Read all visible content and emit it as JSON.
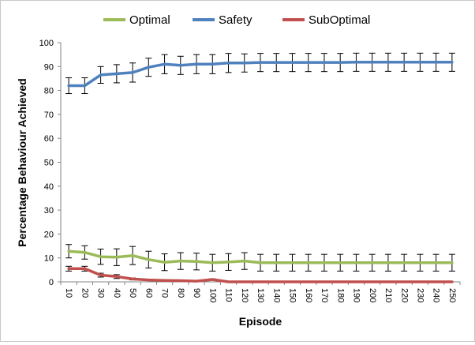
{
  "chart_data": {
    "type": "line",
    "xlabel": "Episode",
    "ylabel": "Percentage Behaviour  Achieved",
    "ylim": [
      0,
      100
    ],
    "yticks": [
      0,
      10,
      20,
      30,
      40,
      50,
      60,
      70,
      80,
      90,
      100
    ],
    "grid": false,
    "legend_position": "top",
    "categories": [
      "10",
      "20",
      "30",
      "40",
      "50",
      "60",
      "70",
      "80",
      "90",
      "100",
      "110",
      "120",
      "130",
      "140",
      "150",
      "160",
      "170",
      "180",
      "190",
      "200",
      "210",
      "220",
      "230",
      "240",
      "250"
    ],
    "series": [
      {
        "name": "Optimal",
        "color": "#9bbb59",
        "values": [
          12.8,
          12.3,
          10.5,
          10.3,
          11.0,
          9.3,
          8.2,
          8.7,
          8.5,
          8.0,
          8.3,
          8.7,
          8.0,
          8.0,
          8.0,
          8.0,
          8.0,
          8.0,
          8.0,
          8.0,
          8.0,
          8.0,
          8.0,
          8.0,
          8.0
        ],
        "error": [
          2.8,
          2.8,
          3.2,
          3.5,
          3.8,
          3.5,
          3.5,
          3.5,
          3.5,
          3.5,
          3.5,
          3.5,
          3.5,
          3.5,
          3.5,
          3.5,
          3.5,
          3.5,
          3.5,
          3.5,
          3.5,
          3.5,
          3.5,
          3.5,
          3.5
        ]
      },
      {
        "name": "Safety",
        "color": "#4f81bd",
        "values": [
          82.0,
          82.0,
          86.5,
          87.0,
          87.5,
          89.7,
          91.0,
          90.5,
          91.0,
          91.0,
          91.5,
          91.5,
          91.7,
          91.7,
          91.7,
          91.7,
          91.7,
          91.7,
          91.8,
          91.8,
          91.8,
          91.8,
          91.8,
          91.8,
          91.8
        ],
        "error": [
          3.3,
          3.3,
          3.5,
          3.8,
          4.0,
          3.8,
          4.0,
          3.8,
          4.0,
          4.0,
          4.0,
          3.8,
          3.8,
          3.8,
          3.8,
          3.8,
          3.8,
          3.8,
          3.8,
          3.8,
          3.8,
          3.8,
          3.8,
          3.8,
          3.8
        ]
      },
      {
        "name": "SubOptimal",
        "color": "#c0504d",
        "values": [
          5.5,
          5.5,
          2.8,
          2.2,
          1.2,
          0.8,
          0.6,
          0.5,
          0.3,
          1.0,
          0.0,
          0.0,
          0.0,
          0.0,
          0.0,
          0.0,
          0.0,
          0.0,
          0.0,
          0.0,
          0.0,
          0.0,
          0.0,
          0.0,
          0.0
        ],
        "error": [
          1.0,
          1.0,
          0.8,
          0.8,
          0.4,
          0.3,
          0.3,
          0.3,
          0.2,
          0.3,
          0,
          0,
          0,
          0,
          0,
          0,
          0,
          0,
          0,
          0,
          0,
          0,
          0,
          0,
          0
        ]
      }
    ]
  }
}
